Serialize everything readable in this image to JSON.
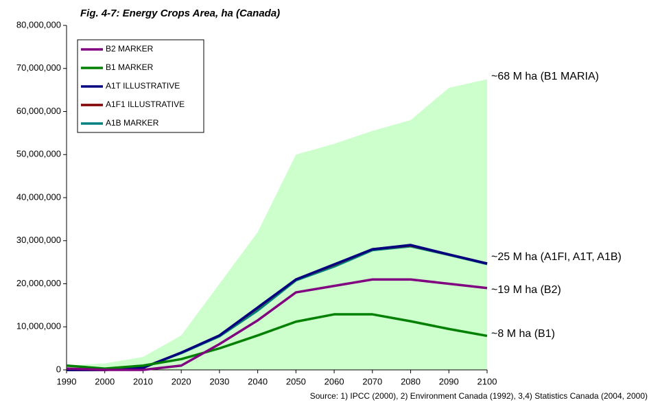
{
  "chart_data": {
    "type": "line",
    "title": "Fig. 4-7: Energy Crops Area, ha (Canada)",
    "source": "Source: 1) IPCC (2000), 2) Environment Canada (1992), 3,4) Statistics Canada (2004, 2000)",
    "x": [
      1990,
      2000,
      2010,
      2020,
      2030,
      2040,
      2050,
      2060,
      2070,
      2080,
      2090,
      2100
    ],
    "xlim": [
      1990,
      2100
    ],
    "xticks": [
      1990,
      2000,
      2010,
      2020,
      2030,
      2040,
      2050,
      2060,
      2070,
      2080,
      2090,
      2100
    ],
    "ylim": [
      0,
      80000000
    ],
    "yticks": [
      0,
      {
        "value": 10000000,
        "label": "10,000,000"
      },
      {
        "value": 20000000,
        "label": "20,000,000"
      },
      {
        "value": 30000000,
        "label": "30,000,000"
      },
      {
        "value": 40000000,
        "label": "40,000,000"
      },
      {
        "value": 50000000,
        "label": "50,000,000"
      },
      {
        "value": 60000000,
        "label": "60,000,000"
      },
      {
        "value": 70000000,
        "label": "70,000,000"
      },
      {
        "value": 80000000,
        "label": "80,000,000"
      }
    ],
    "area": {
      "color": "#ccffcc",
      "values": [
        1000000,
        1500000,
        3000000,
        8000000,
        20000000,
        32000000,
        50000000,
        52500000,
        55500000,
        58000000,
        65500000,
        67500000
      ]
    },
    "series": [
      {
        "name": "B2 MARKER",
        "color": "#800080",
        "values": [
          300000,
          0,
          0,
          1000000,
          6000000,
          11500000,
          18000000,
          19500000,
          21000000,
          21000000,
          20000000,
          19000000
        ]
      },
      {
        "name": "B1 MARKER",
        "color": "#008000",
        "values": [
          1000000,
          300000,
          1000000,
          2500000,
          5000000,
          8000000,
          11200000,
          12900000,
          12900000,
          11300000,
          9500000,
          7900000
        ]
      },
      {
        "name": "A1T ILLUSTRATIVE",
        "color": "#000080",
        "values": [
          0,
          0,
          500000,
          4000000,
          8000000,
          14500000,
          21000000,
          24500000,
          28000000,
          29000000,
          26800000,
          24700000
        ]
      },
      {
        "name": "A1F1 ILLUSTRATIVE",
        "color": "#800000",
        "values": [
          0,
          0,
          500000,
          4000000,
          8000000,
          14400000,
          21000000,
          24400000,
          28000000,
          28900000,
          26800000,
          24700000
        ]
      },
      {
        "name": "A1B MARKER",
        "color": "#008080",
        "values": [
          0,
          0,
          500000,
          3900000,
          7800000,
          13800000,
          20800000,
          24000000,
          27800000,
          28700000,
          26700000,
          24600000
        ]
      }
    ],
    "annotations": [
      "~68 M ha (B1 MARIA)",
      "~25 M ha (A1FI, A1T, A1B)",
      "~19 M ha (B2)",
      "~8 M ha (B1)"
    ]
  }
}
